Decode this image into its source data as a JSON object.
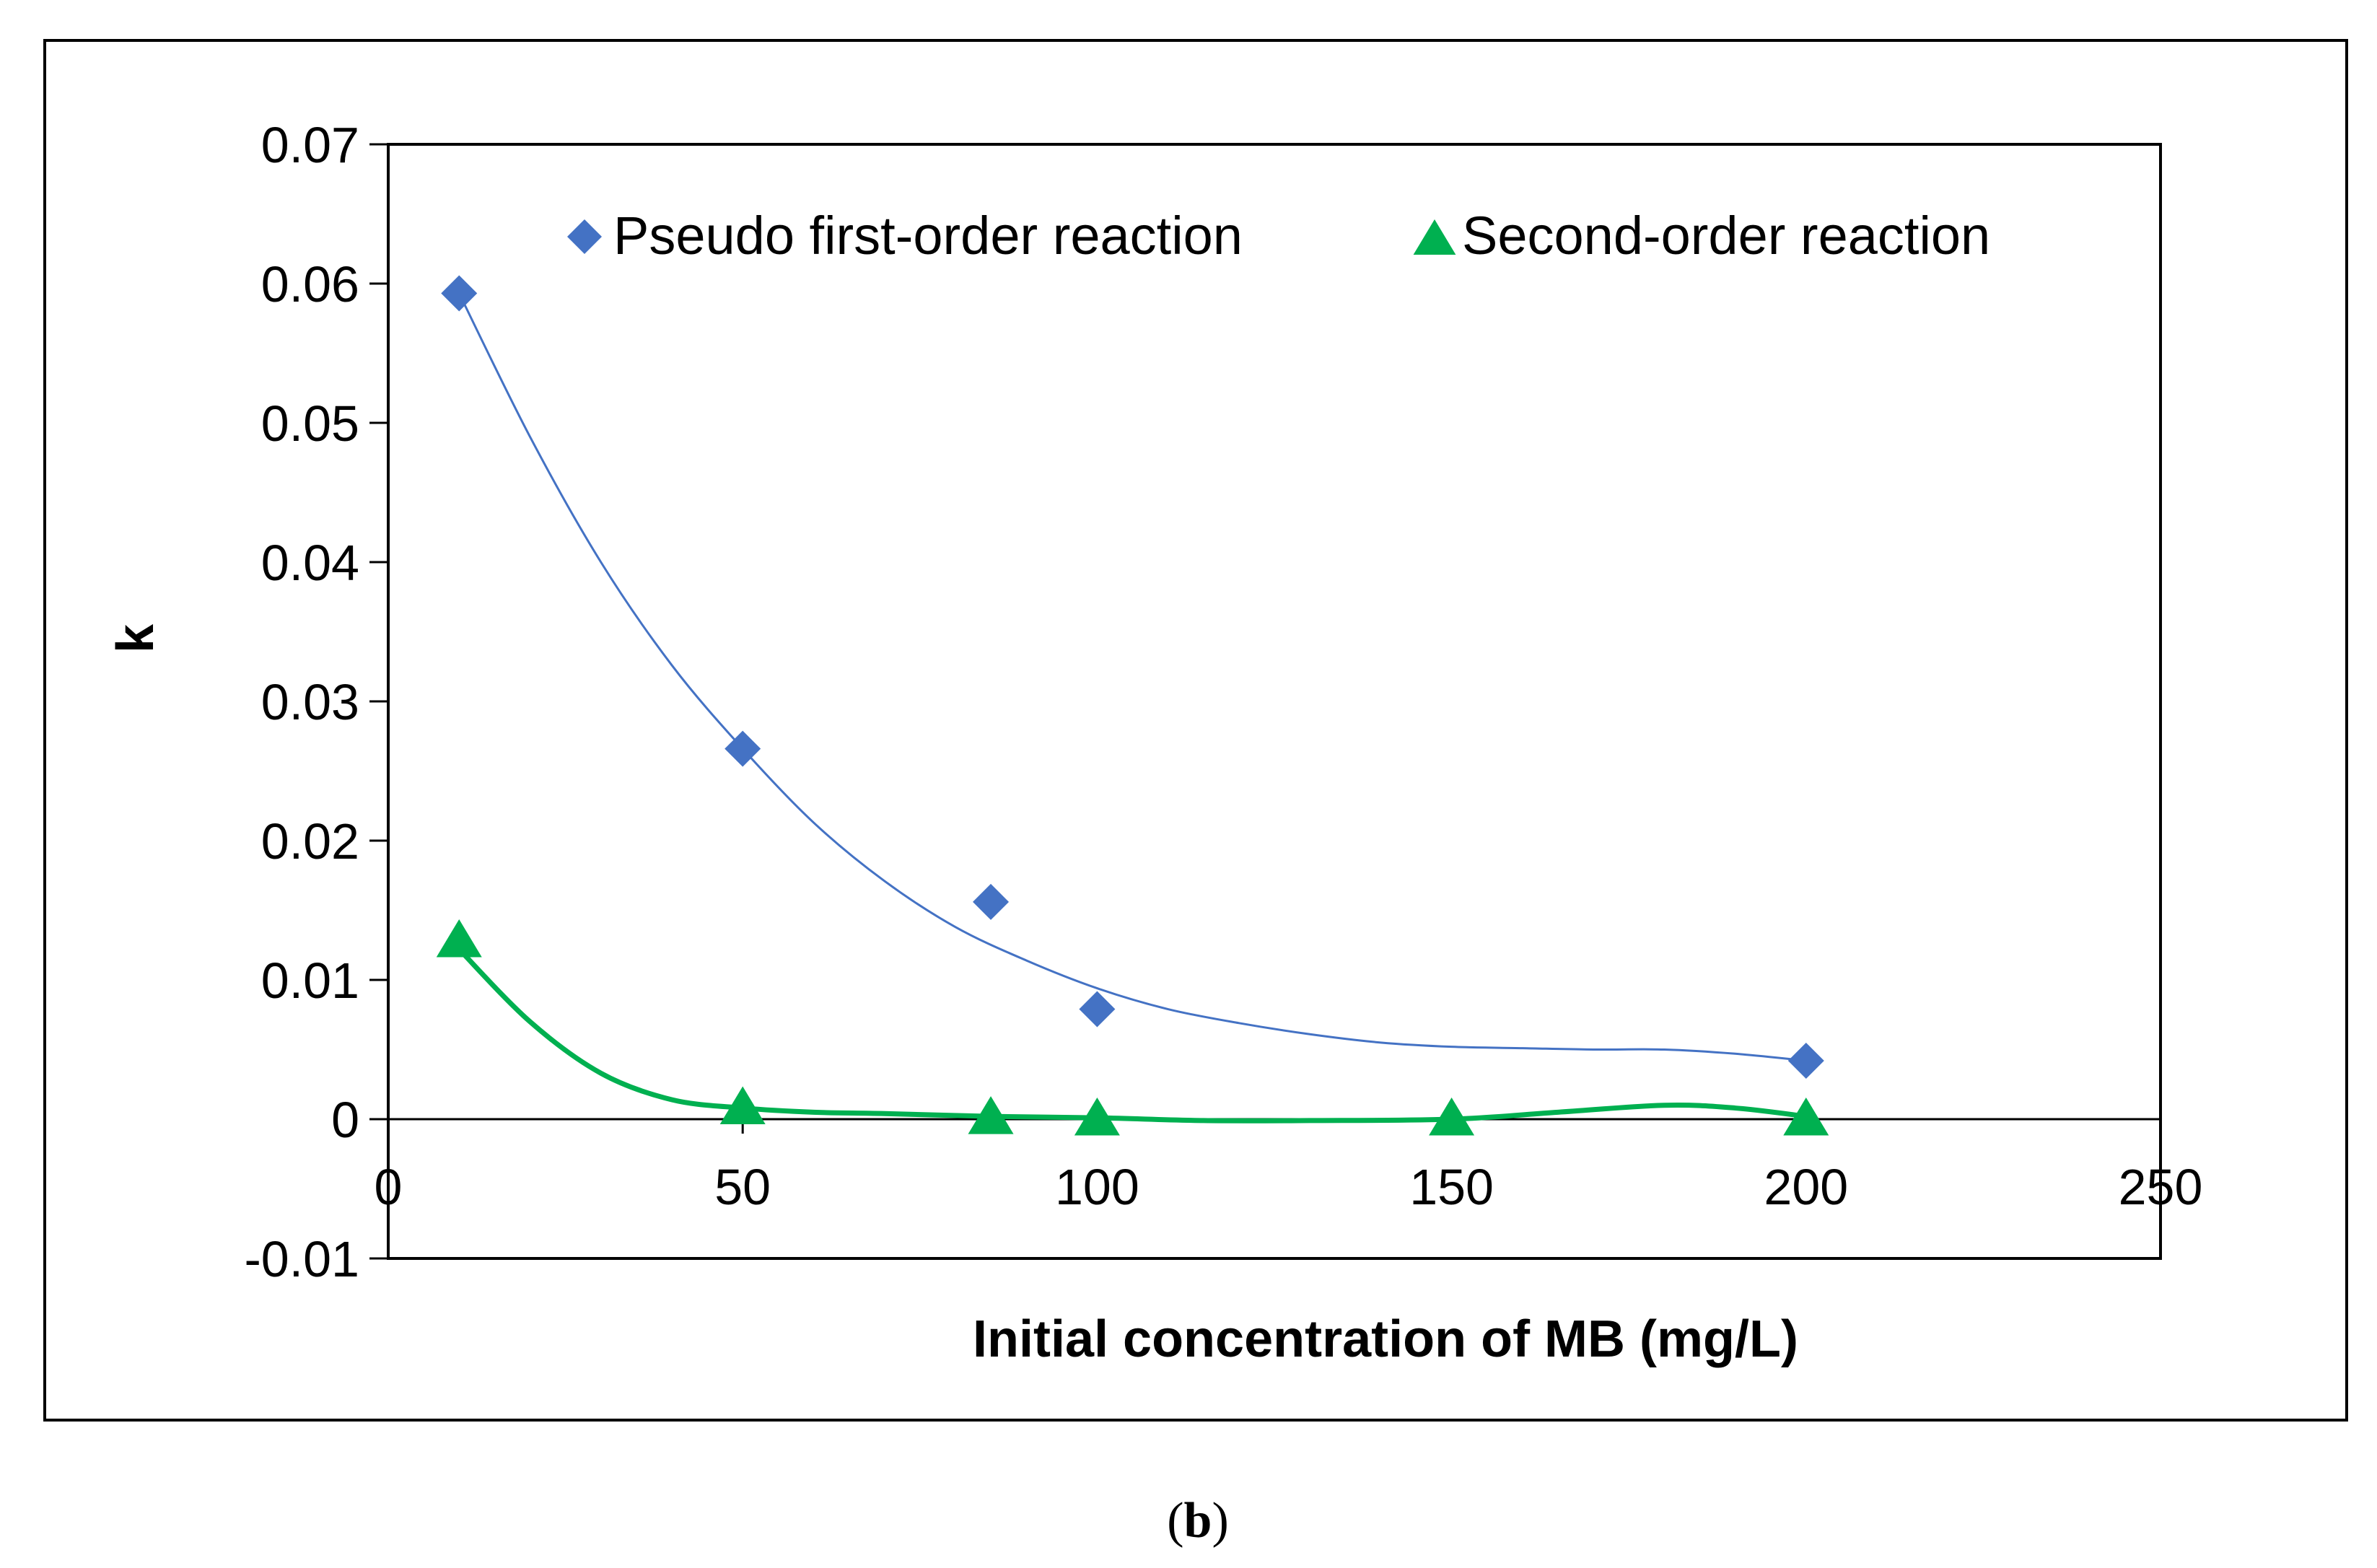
{
  "colors": {
    "series1": "#4472C4",
    "series2": "#00B050",
    "axis": "#000000",
    "frame": "#000000"
  },
  "caption": {
    "open": "(",
    "letter": "b",
    "close": ")"
  },
  "chart_data": {
    "type": "scatter",
    "title": "",
    "xlabel": "Initial concentration of MB (mg/L)",
    "ylabel": "k",
    "xlim": [
      0,
      250
    ],
    "ylim": [
      -0.01,
      0.07
    ],
    "x_ticks": [
      0,
      50,
      100,
      150,
      200,
      250
    ],
    "x_tick_labels": [
      "0",
      "50",
      "100",
      "150",
      "200",
      "250"
    ],
    "y_ticks": [
      -0.01,
      0,
      0.01,
      0.02,
      0.03,
      0.04,
      0.05,
      0.06,
      0.07
    ],
    "y_tick_labels": [
      "-0.01",
      "0",
      "0.01",
      "0.02",
      "0.03",
      "0.04",
      "0.05",
      "0.06",
      "0.07"
    ],
    "grid": false,
    "legend_position": "top",
    "series": [
      {
        "name": "Pseudo first-order reaction",
        "marker": "diamond",
        "x": [
          10,
          50,
          85,
          100,
          200
        ],
        "y": [
          0.0593,
          0.0266,
          0.0156,
          0.0079,
          0.0042
        ],
        "trendline_x": [
          10,
          20,
          30,
          40,
          50,
          60,
          70,
          80,
          90,
          100,
          110,
          120,
          130,
          140,
          150,
          160,
          170,
          180,
          190,
          200
        ],
        "trendline_y": [
          0.0593,
          0.049,
          0.04,
          0.0326,
          0.0266,
          0.0213,
          0.0171,
          0.0138,
          0.0114,
          0.0094,
          0.0079,
          0.0069,
          0.0061,
          0.0055,
          0.0052,
          0.0051,
          0.005,
          0.005,
          0.0047,
          0.0042
        ]
      },
      {
        "name": "Second-order reaction",
        "marker": "triangle",
        "x": [
          10,
          50,
          85,
          100,
          150,
          200
        ],
        "y": [
          0.0128,
          0.0008,
          0.0001,
          0.0,
          0.0,
          0.0
        ],
        "trendline_x": [
          10,
          20,
          30,
          40,
          50,
          60,
          70,
          85,
          100,
          115,
          130,
          150,
          165,
          180,
          190,
          200
        ],
        "trendline_y": [
          0.0122,
          0.007,
          0.0033,
          0.0014,
          0.0008,
          0.0005,
          0.0004,
          0.0002,
          0.0001,
          -0.0001,
          -0.0001,
          0.0,
          0.0005,
          0.001,
          0.0008,
          0.0002
        ]
      }
    ]
  }
}
